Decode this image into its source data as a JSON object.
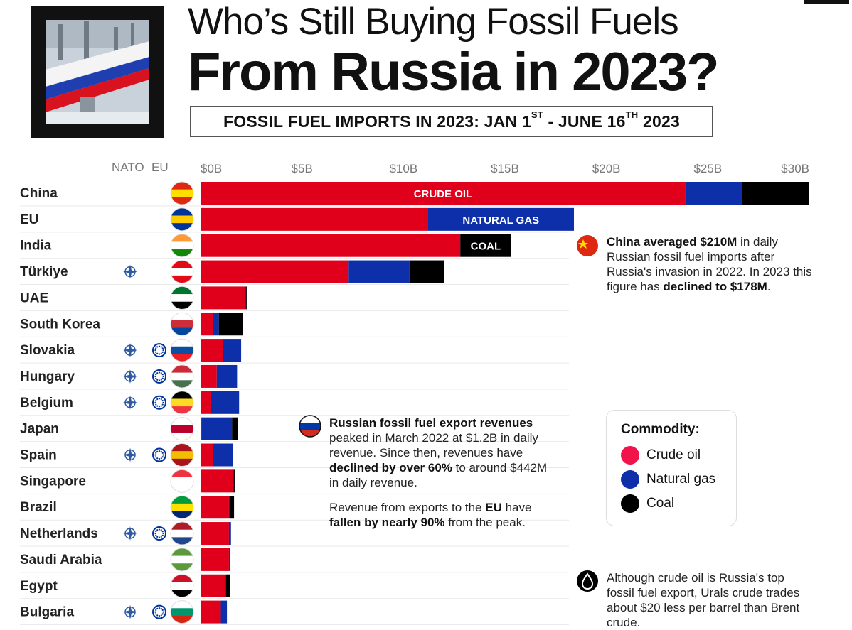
{
  "header": {
    "title_line1": "Who’s Still Buying Fossil Fuels",
    "title_line2": "From Russia in 2023?",
    "subtitle_a": "FOSSIL FUEL IMPORTS IN 2023: JAN 1",
    "subtitle_sup1": "ST",
    "subtitle_b": " - JUNE 16",
    "subtitle_sup2": "TH",
    "subtitle_c": " 2023"
  },
  "columns": {
    "nato": "NATO",
    "eu": "EU"
  },
  "colors": {
    "crude": "#e1001b",
    "gas": "#0d2faa",
    "coal": "#000000"
  },
  "chart_data": {
    "type": "bar",
    "orientation": "horizontal",
    "stacked": true,
    "xlim": [
      0,
      30
    ],
    "x_ticks": [
      "$0B",
      "$5B",
      "$10B",
      "$15B",
      "$20B",
      "$25B",
      "$30B"
    ],
    "x_tick_values": [
      0,
      5,
      10,
      15,
      20,
      25,
      30
    ],
    "categories": [
      "China",
      "EU",
      "India",
      "Türkiye",
      "UAE",
      "South Korea",
      "Slovakia",
      "Hungary",
      "Belgium",
      "Japan",
      "Spain",
      "Singapore",
      "Brazil",
      "Netherlands",
      "Saudi Arabia",
      "Egypt",
      "Bulgaria"
    ],
    "nato": [
      false,
      false,
      false,
      true,
      false,
      false,
      true,
      true,
      true,
      false,
      true,
      false,
      false,
      true,
      false,
      false,
      true
    ],
    "eu_member": [
      false,
      false,
      false,
      false,
      false,
      false,
      true,
      true,
      true,
      false,
      true,
      false,
      false,
      true,
      false,
      false,
      true
    ],
    "series": [
      {
        "name": "Crude oil",
        "values": [
          23.9,
          11.2,
          12.8,
          7.3,
          2.2,
          0.6,
          1.1,
          0.8,
          0.5,
          0.05,
          0.6,
          1.6,
          1.4,
          1.4,
          1.4,
          1.2,
          1.0
        ]
      },
      {
        "name": "Natural gas",
        "values": [
          2.8,
          7.2,
          0,
          3.0,
          0.05,
          0.3,
          0.9,
          1.0,
          1.4,
          1.5,
          1.0,
          0.05,
          0.05,
          0.1,
          0.05,
          0.05,
          0.3
        ]
      },
      {
        "name": "Coal",
        "values": [
          3.3,
          0,
          2.5,
          1.7,
          0.05,
          1.2,
          0,
          0,
          0,
          0.3,
          0,
          0.05,
          0.2,
          0,
          0,
          0.2,
          0
        ]
      }
    ],
    "bar_labels": [
      {
        "row": 0,
        "series": 0,
        "text": "CRUDE OIL"
      },
      {
        "row": 1,
        "series": 1,
        "text": "NATURAL GAS"
      },
      {
        "row": 2,
        "series": 2,
        "text": "COAL"
      }
    ],
    "legend": {
      "title": "Commodity:",
      "placement": "right",
      "items": [
        "Crude oil",
        "Natural gas",
        "Coal"
      ]
    }
  },
  "annotations": {
    "china": {
      "p1_b": "China averaged $210M",
      "p1_a": " in daily Russian fossil fuel imports after Russia's invasion in 2022. In 2023 this figure has ",
      "p1_b2": "declined to $178M",
      "p1_c": "."
    },
    "russia": {
      "p1_b": "Russian fossil fuel export revenues",
      "p1_a": " peaked in March 2022 at $1.2B in daily revenue. Since then, revenues have ",
      "p1_b2": "declined by over 60%",
      "p1_c": " to around $442M in daily revenue.",
      "p2_a": "Revenue from exports to the ",
      "p2_b": "EU",
      "p2_c": " have ",
      "p2_b2": "fallen by nearly 90%",
      "p2_d": " from the peak."
    },
    "crude": {
      "text": "Although crude oil is Russia's top fossil fuel export, Urals crude trades about $20 less per barrel than Brent crude."
    }
  }
}
